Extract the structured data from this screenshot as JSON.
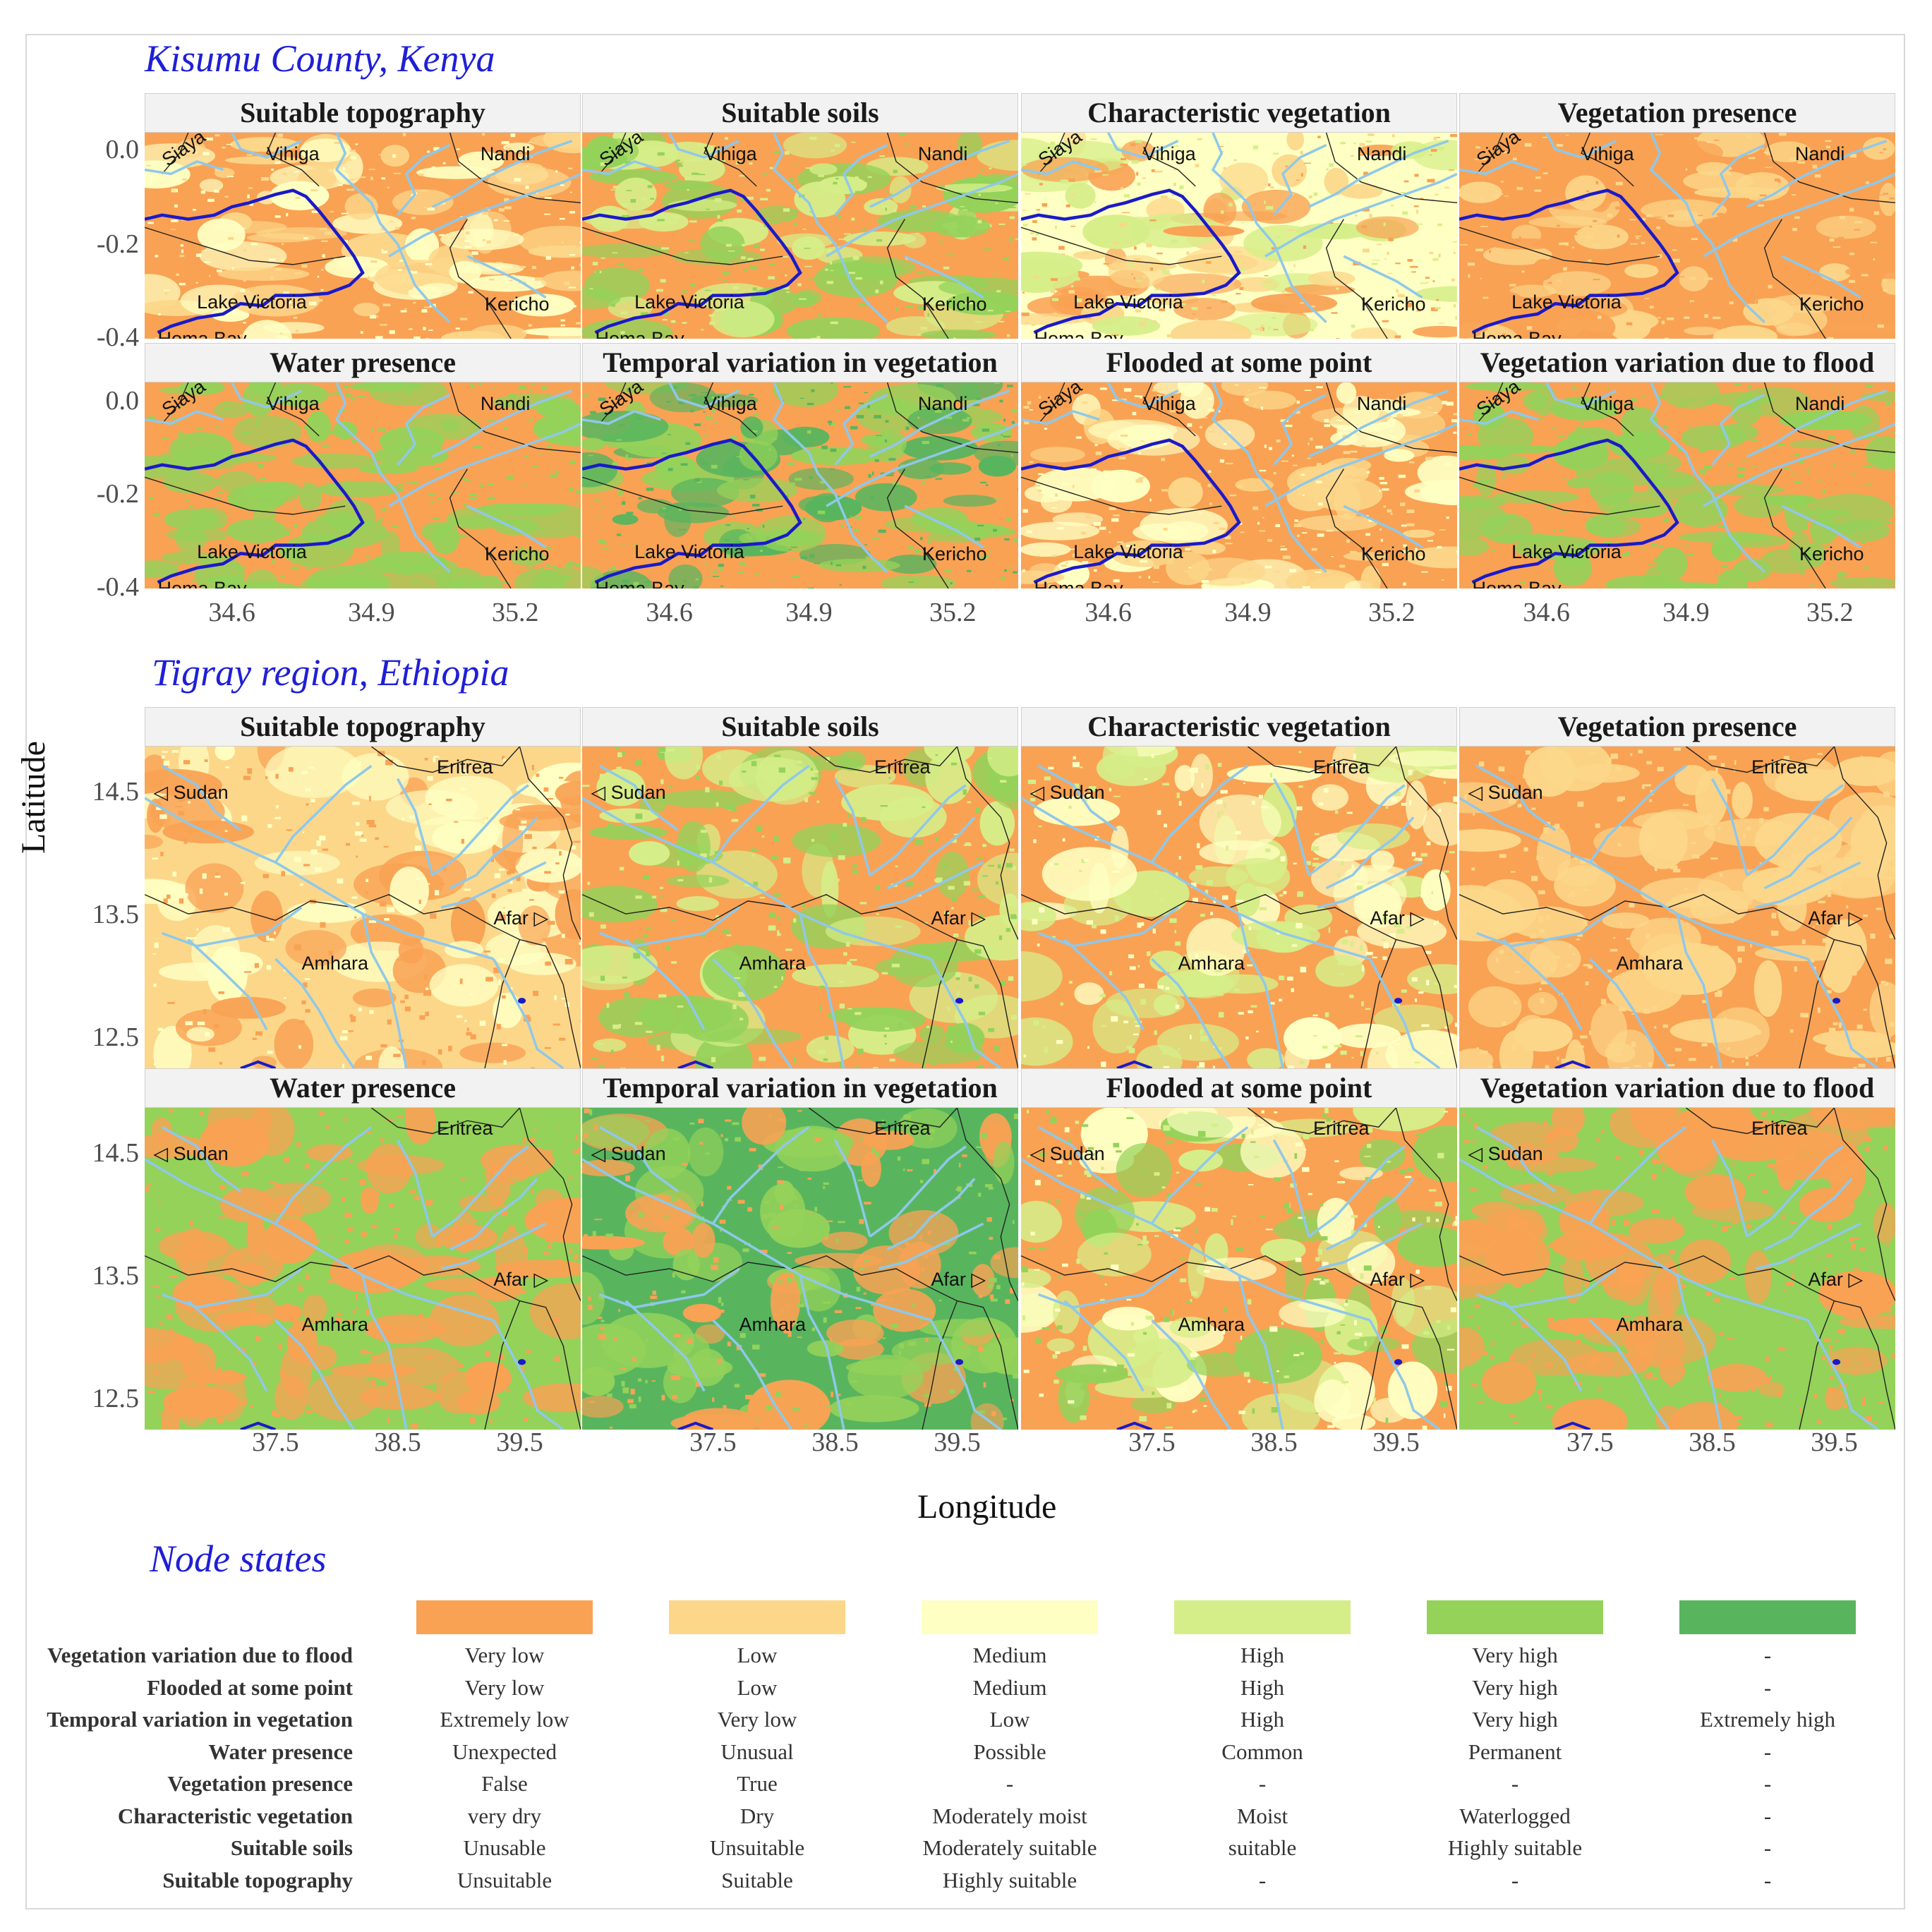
{
  "colors": {
    "very_low": "#f9a254",
    "low": "#fcd78a",
    "medium": "#feffc2",
    "high": "#d6ee89",
    "very_high": "#94d25a",
    "extreme": "#58b55e",
    "river": "#8fc8ea",
    "lake_edge": "#1a1ac8"
  },
  "regions": [
    {
      "title": "Kisumu County, Kenya",
      "lat_ticks": [
        "0.0",
        "-0.2",
        "-0.4"
      ],
      "lon_ticks": [
        "34.6",
        "34.9",
        "35.2"
      ],
      "labels": [
        "Siaya",
        "Vihiga",
        "Nandi",
        "Lake Victoria",
        "Kericho",
        "Homa Bay"
      ],
      "panels": [
        {
          "title": "Suitable topography",
          "base": "very_low",
          "patches": [
            "low",
            "medium"
          ]
        },
        {
          "title": "Suitable soils",
          "base": "very_low",
          "patches": [
            "high",
            "very_high"
          ]
        },
        {
          "title": "Characteristic vegetation",
          "base": "medium",
          "patches": [
            "very_low",
            "low",
            "high"
          ]
        },
        {
          "title": "Vegetation presence",
          "base": "very_low",
          "patches": [
            "very_low",
            "low"
          ]
        },
        {
          "title": "Water presence",
          "base": "very_low",
          "patches": [
            "very_high"
          ]
        },
        {
          "title": "Temporal variation in vegetation",
          "base": "very_low",
          "patches": [
            "extreme",
            "very_high"
          ]
        },
        {
          "title": "Flooded at some point",
          "base": "very_low",
          "patches": [
            "low",
            "medium"
          ]
        },
        {
          "title": "Vegetation variation due to flood",
          "base": "very_low",
          "patches": [
            "very_high"
          ]
        }
      ]
    },
    {
      "title": "Tigray region, Ethiopia",
      "lat_ticks": [
        "14.5",
        "13.5",
        "12.5"
      ],
      "lon_ticks": [
        "37.5",
        "38.5",
        "39.5"
      ],
      "labels": [
        "Eritrea",
        "◁ Sudan",
        "Afar ▷",
        "Amhara"
      ],
      "panels": [
        {
          "title": "Suitable topography",
          "base": "low",
          "patches": [
            "very_low",
            "medium"
          ]
        },
        {
          "title": "Suitable soils",
          "base": "very_low",
          "patches": [
            "very_high",
            "high"
          ]
        },
        {
          "title": "Characteristic vegetation",
          "base": "very_low",
          "patches": [
            "high",
            "medium"
          ]
        },
        {
          "title": "Vegetation presence",
          "base": "very_low",
          "patches": [
            "low"
          ]
        },
        {
          "title": "Water presence",
          "base": "very_high",
          "patches": [
            "very_low"
          ]
        },
        {
          "title": "Temporal variation in vegetation",
          "base": "extreme",
          "patches": [
            "very_low",
            "very_high"
          ]
        },
        {
          "title": "Flooded at some point",
          "base": "very_low",
          "patches": [
            "high",
            "very_high",
            "medium"
          ]
        },
        {
          "title": "Vegetation variation due to flood",
          "base": "very_high",
          "patches": [
            "very_low"
          ]
        }
      ]
    }
  ],
  "axes": {
    "y_label": "Latitude",
    "x_label": "Longitude"
  },
  "legend": {
    "title": "Node states",
    "swatch_keys": [
      "very_low",
      "low",
      "medium",
      "high",
      "very_high",
      "extreme"
    ],
    "rows": [
      {
        "label": "Vegetation variation due to flood",
        "states": [
          "Very low",
          "Low",
          "Medium",
          "High",
          "Very high",
          "-"
        ]
      },
      {
        "label": "Flooded at some point",
        "states": [
          "Very low",
          "Low",
          "Medium",
          "High",
          "Very high",
          "-"
        ]
      },
      {
        "label": "Temporal variation in vegetation",
        "states": [
          "Extremely low",
          "Very low",
          "Low",
          "High",
          "Very high",
          "Extremely high"
        ]
      },
      {
        "label": "Water presence",
        "states": [
          "Unexpected",
          "Unusual",
          "Possible",
          "Common",
          "Permanent",
          "-"
        ]
      },
      {
        "label": "Vegetation presence",
        "states": [
          "False",
          "True",
          "-",
          "-",
          "-",
          "-"
        ]
      },
      {
        "label": "Characteristic vegetation",
        "states": [
          "very dry",
          "Dry",
          "Moderately moist",
          "Moist",
          "Waterlogged",
          "-"
        ]
      },
      {
        "label": "Suitable soils",
        "states": [
          "Unusable",
          "Unsuitable",
          "Moderately suitable",
          "suitable",
          "Highly suitable",
          "-"
        ]
      },
      {
        "label": "Suitable topography",
        "states": [
          "Unsuitable",
          "Suitable",
          "Highly suitable",
          "-",
          "-",
          "-"
        ]
      }
    ]
  }
}
